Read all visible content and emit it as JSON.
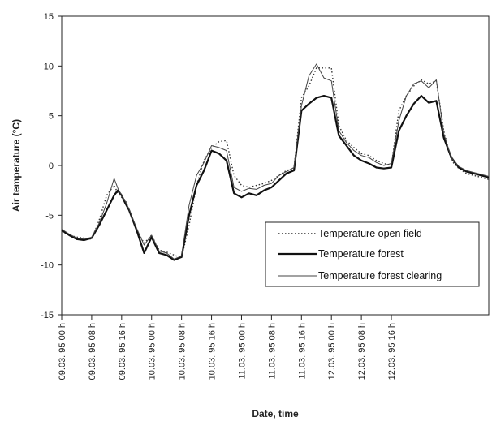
{
  "chart_data": {
    "type": "line",
    "title": "",
    "xlabel": "Date, time",
    "ylabel": "Air temperature (°C)",
    "ylim": [
      -15,
      15
    ],
    "y_ticks": [
      15,
      10,
      5,
      0,
      -5,
      -10,
      -15
    ],
    "x_tick_labels": [
      "09.03. 95 00 h",
      "09.03. 95 08 h",
      "09.03. 95 16 h",
      "10.03. 95 00 h",
      "10.03. 95 08 h",
      "10.03. 95 16 h",
      "11.03. 95 00 h",
      "11.03. 95 08 h",
      "11.03. 95 16 h",
      "12.03. 95 00 h",
      "12.03. 95 08 h",
      "12.03. 95 16 h"
    ],
    "x_unit": "hours from 09.03. 95 00 h",
    "x": [
      0,
      2,
      4,
      6,
      8,
      10,
      12,
      14,
      15,
      16,
      17,
      18,
      20,
      22,
      24,
      26,
      28,
      30,
      32,
      34,
      36,
      38,
      40,
      42,
      44,
      46,
      48,
      50,
      52,
      54,
      56,
      58,
      60,
      62,
      64,
      66,
      68,
      70,
      72,
      74,
      76,
      78,
      80,
      82,
      84,
      86,
      88,
      90,
      92,
      94,
      96,
      98,
      100,
      102,
      104,
      106,
      108,
      110,
      112,
      114
    ],
    "series": [
      {
        "name": "Temperature open field",
        "style": "dotted",
        "color": "#333333",
        "values": [
          -6.6,
          -7.0,
          -7.2,
          -7.3,
          -7.4,
          -5.5,
          -3.0,
          -2.0,
          -2.8,
          -3.2,
          -3.5,
          -4.5,
          -6.5,
          -7.8,
          -7.0,
          -8.5,
          -8.7,
          -9.0,
          -9.3,
          -6.0,
          -2.0,
          0.5,
          1.8,
          2.4,
          2.5,
          -1.0,
          -2.0,
          -2.2,
          -2.0,
          -1.8,
          -1.5,
          -1.0,
          -0.5,
          -0.3,
          6.8,
          8.0,
          9.8,
          9.8,
          9.8,
          4.0,
          2.5,
          1.8,
          1.2,
          1.0,
          0.5,
          0.2,
          0.0,
          5.5,
          7.0,
          8.0,
          8.6,
          8.2,
          8.5,
          3.5,
          0.5,
          -0.3,
          -0.8,
          -1.0,
          -1.2,
          -1.4
        ]
      },
      {
        "name": "Temperature forest",
        "style": "solid-thick",
        "color": "#111111",
        "values": [
          -6.5,
          -7.0,
          -7.4,
          -7.5,
          -7.3,
          -6.0,
          -4.5,
          -3.0,
          -2.5,
          -3.0,
          -3.8,
          -4.5,
          -6.5,
          -8.8,
          -7.2,
          -8.8,
          -9.0,
          -9.5,
          -9.2,
          -5.0,
          -2.0,
          -0.5,
          1.5,
          1.2,
          0.5,
          -2.8,
          -3.2,
          -2.8,
          -3.0,
          -2.5,
          -2.2,
          -1.5,
          -0.8,
          -0.5,
          5.5,
          6.2,
          6.8,
          7.0,
          6.8,
          3.0,
          2.0,
          1.0,
          0.5,
          0.2,
          -0.2,
          -0.3,
          -0.2,
          3.5,
          5.0,
          6.2,
          7.0,
          6.3,
          6.5,
          2.8,
          0.8,
          -0.2,
          -0.6,
          -0.8,
          -1.0,
          -1.2
        ]
      },
      {
        "name": "Temperature forest clearing",
        "style": "solid-thin",
        "color": "#444444",
        "values": [
          -6.4,
          -6.9,
          -7.3,
          -7.4,
          -7.2,
          -5.8,
          -3.8,
          -1.3,
          -2.3,
          -3.0,
          -3.6,
          -4.4,
          -6.3,
          -8.0,
          -7.0,
          -8.6,
          -8.8,
          -9.4,
          -9.1,
          -4.0,
          -1.0,
          0.3,
          2.0,
          1.8,
          1.5,
          -2.2,
          -2.6,
          -2.3,
          -2.4,
          -2.0,
          -1.8,
          -1.0,
          -0.6,
          -0.2,
          6.0,
          9.0,
          10.2,
          8.8,
          8.5,
          3.5,
          2.3,
          1.5,
          1.0,
          0.8,
          0.3,
          0.0,
          0.2,
          4.5,
          7.0,
          8.2,
          8.5,
          7.8,
          8.6,
          3.2,
          0.8,
          -0.1,
          -0.5,
          -0.7,
          -0.9,
          -1.1
        ]
      }
    ],
    "legend": {
      "position": "lower-right",
      "entries": [
        "Temperature open field",
        "Temperature forest",
        "Temperature forest clearing"
      ]
    },
    "grid": false,
    "background": "#ffffff",
    "axis_color": "#222222"
  }
}
